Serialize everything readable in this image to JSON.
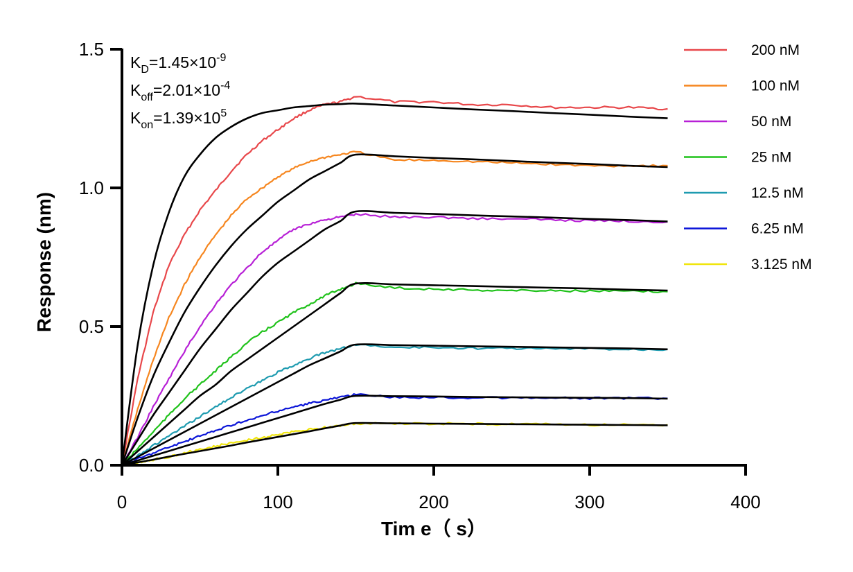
{
  "chart_data": {
    "type": "line",
    "xlabel": "Tim e（ s）",
    "ylabel": "Response (nm)",
    "xlim": [
      0,
      400
    ],
    "ylim": [
      0,
      1.5
    ],
    "xticks": [
      0,
      100,
      200,
      300,
      400
    ],
    "yticks": [
      0.0,
      0.5,
      1.0,
      1.5
    ],
    "xtick_labels": [
      "0",
      "100",
      "200",
      "300",
      "400"
    ],
    "ytick_labels": [
      "0.0",
      "0.5",
      "1.0",
      "1.5"
    ],
    "grid": false,
    "legend_position": "right",
    "annotations": [
      {
        "base": "K",
        "sub": "D",
        "text": "=1.45×10",
        "sup": "-9"
      },
      {
        "base": "K",
        "sub": "off",
        "text": "=2.01×10",
        "sup": "-4"
      },
      {
        "base": "K",
        "sub": "on",
        "text": "=1.39×10",
        "sup": "5"
      }
    ],
    "x": [
      0,
      10,
      20,
      30,
      40,
      50,
      60,
      70,
      80,
      90,
      100,
      110,
      120,
      130,
      140,
      150,
      175,
      200,
      225,
      250,
      275,
      300,
      325,
      350
    ],
    "series": [
      {
        "name": "200 nM",
        "color": "#e8474a",
        "values": [
          0,
          0.31,
          0.55,
          0.72,
          0.83,
          0.92,
          0.99,
          1.06,
          1.12,
          1.17,
          1.21,
          1.25,
          1.28,
          1.3,
          1.31,
          1.33,
          1.31,
          1.31,
          1.3,
          1.3,
          1.29,
          1.29,
          1.29,
          1.285
        ]
      },
      {
        "name": "100 nM",
        "color": "#f6861f",
        "values": [
          0,
          0.2,
          0.38,
          0.53,
          0.65,
          0.75,
          0.83,
          0.9,
          0.96,
          1.0,
          1.04,
          1.07,
          1.095,
          1.11,
          1.12,
          1.13,
          1.1,
          1.1,
          1.095,
          1.09,
          1.085,
          1.08,
          1.08,
          1.08
        ]
      },
      {
        "name": "50 nM",
        "color": "#b720d6",
        "values": [
          0,
          0.1,
          0.21,
          0.31,
          0.41,
          0.5,
          0.58,
          0.65,
          0.71,
          0.77,
          0.81,
          0.85,
          0.87,
          0.885,
          0.895,
          0.905,
          0.895,
          0.895,
          0.89,
          0.888,
          0.885,
          0.882,
          0.88,
          0.878
        ]
      },
      {
        "name": "25 nM",
        "color": "#1fc21a",
        "values": [
          0,
          0.06,
          0.12,
          0.18,
          0.24,
          0.29,
          0.34,
          0.39,
          0.44,
          0.48,
          0.515,
          0.55,
          0.58,
          0.61,
          0.635,
          0.655,
          0.64,
          0.635,
          0.632,
          0.63,
          0.63,
          0.628,
          0.627,
          0.626
        ]
      },
      {
        "name": "12.5 nM",
        "color": "#1e9bb0",
        "values": [
          0,
          0.035,
          0.07,
          0.105,
          0.14,
          0.175,
          0.21,
          0.245,
          0.275,
          0.305,
          0.335,
          0.36,
          0.385,
          0.405,
          0.42,
          0.435,
          0.425,
          0.425,
          0.422,
          0.422,
          0.42,
          0.42,
          0.418,
          0.418
        ]
      },
      {
        "name": "6.25 nM",
        "color": "#0a14d8",
        "values": [
          0,
          0.022,
          0.044,
          0.065,
          0.085,
          0.105,
          0.125,
          0.145,
          0.16,
          0.178,
          0.195,
          0.21,
          0.222,
          0.235,
          0.245,
          0.255,
          0.245,
          0.245,
          0.243,
          0.243,
          0.242,
          0.242,
          0.241,
          0.241
        ]
      },
      {
        "name": "3.125 nM",
        "color": "#f0e50d",
        "values": [
          0,
          0.01,
          0.02,
          0.03,
          0.045,
          0.057,
          0.068,
          0.08,
          0.09,
          0.1,
          0.11,
          0.12,
          0.128,
          0.136,
          0.143,
          0.15,
          0.15,
          0.15,
          0.149,
          0.148,
          0.147,
          0.146,
          0.146,
          0.146
        ]
      }
    ],
    "fits": [
      {
        "values": [
          0,
          0.43,
          0.72,
          0.91,
          1.04,
          1.12,
          1.18,
          1.22,
          1.25,
          1.27,
          1.28,
          1.29,
          1.295,
          1.3,
          1.302,
          1.304,
          1.297,
          1.29,
          1.283,
          1.277,
          1.27,
          1.264,
          1.257,
          1.251
        ]
      },
      {
        "values": [
          0,
          0.17,
          0.32,
          0.44,
          0.55,
          0.64,
          0.72,
          0.79,
          0.85,
          0.9,
          0.95,
          0.99,
          1.03,
          1.06,
          1.09,
          1.12,
          1.114,
          1.108,
          1.103,
          1.097,
          1.091,
          1.086,
          1.08,
          1.075
        ]
      },
      {
        "values": [
          0,
          0.09,
          0.18,
          0.26,
          0.34,
          0.42,
          0.49,
          0.56,
          0.62,
          0.68,
          0.73,
          0.77,
          0.81,
          0.85,
          0.88,
          0.915,
          0.91,
          0.906,
          0.901,
          0.897,
          0.893,
          0.888,
          0.884,
          0.879
        ]
      },
      {
        "values": [
          0,
          0.05,
          0.1,
          0.15,
          0.2,
          0.25,
          0.29,
          0.34,
          0.38,
          0.42,
          0.46,
          0.5,
          0.54,
          0.58,
          0.62,
          0.655,
          0.652,
          0.649,
          0.646,
          0.643,
          0.64,
          0.637,
          0.633,
          0.63
        ]
      },
      {
        "values": [
          0,
          0.03,
          0.06,
          0.09,
          0.12,
          0.15,
          0.18,
          0.21,
          0.24,
          0.27,
          0.3,
          0.33,
          0.36,
          0.385,
          0.41,
          0.435,
          0.433,
          0.431,
          0.429,
          0.427,
          0.425,
          0.423,
          0.421,
          0.418
        ]
      },
      {
        "values": [
          0,
          0.017,
          0.034,
          0.051,
          0.068,
          0.085,
          0.102,
          0.119,
          0.136,
          0.153,
          0.17,
          0.187,
          0.204,
          0.221,
          0.236,
          0.25,
          0.249,
          0.248,
          0.246,
          0.245,
          0.244,
          0.243,
          0.242,
          0.24
        ]
      },
      {
        "values": [
          0,
          0.01,
          0.02,
          0.031,
          0.041,
          0.051,
          0.061,
          0.071,
          0.082,
          0.092,
          0.102,
          0.112,
          0.122,
          0.133,
          0.143,
          0.152,
          0.151,
          0.15,
          0.149,
          0.148,
          0.147,
          0.146,
          0.145,
          0.144
        ]
      }
    ],
    "fit_color": "#000000"
  }
}
